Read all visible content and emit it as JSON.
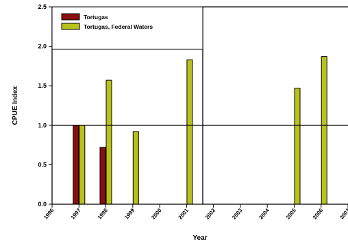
{
  "chart_data": {
    "type": "bar",
    "xlabel": "Year",
    "ylabel": "CPUE Index",
    "ylim": [
      0,
      2.5
    ],
    "xlim": [
      1996,
      2007
    ],
    "yticks": [
      "0.0",
      "0.5",
      "1.0",
      "1.5",
      "2.0",
      "2.5"
    ],
    "xticks": [
      "1996",
      "1997",
      "1998",
      "1999",
      "2000",
      "2001",
      "2002",
      "2003",
      "2004",
      "2005",
      "2006",
      "2007"
    ],
    "reference_line": 1.0,
    "legend_position": "top-left",
    "grid": false,
    "series": [
      {
        "name": "Tortugas",
        "color": "#8b0f0f",
        "points": [
          {
            "x": 1997,
            "y": 1.0
          },
          {
            "x": 1998,
            "y": 0.72
          }
        ]
      },
      {
        "name": "Tortugas, Federal Waters",
        "color": "#b8c21a",
        "points": [
          {
            "x": 1997,
            "y": 1.0
          },
          {
            "x": 1998,
            "y": 1.57
          },
          {
            "x": 1999,
            "y": 0.92
          },
          {
            "x": 2001,
            "y": 1.83
          },
          {
            "x": 2005,
            "y": 1.47
          },
          {
            "x": 2006,
            "y": 1.87
          }
        ]
      }
    ]
  }
}
